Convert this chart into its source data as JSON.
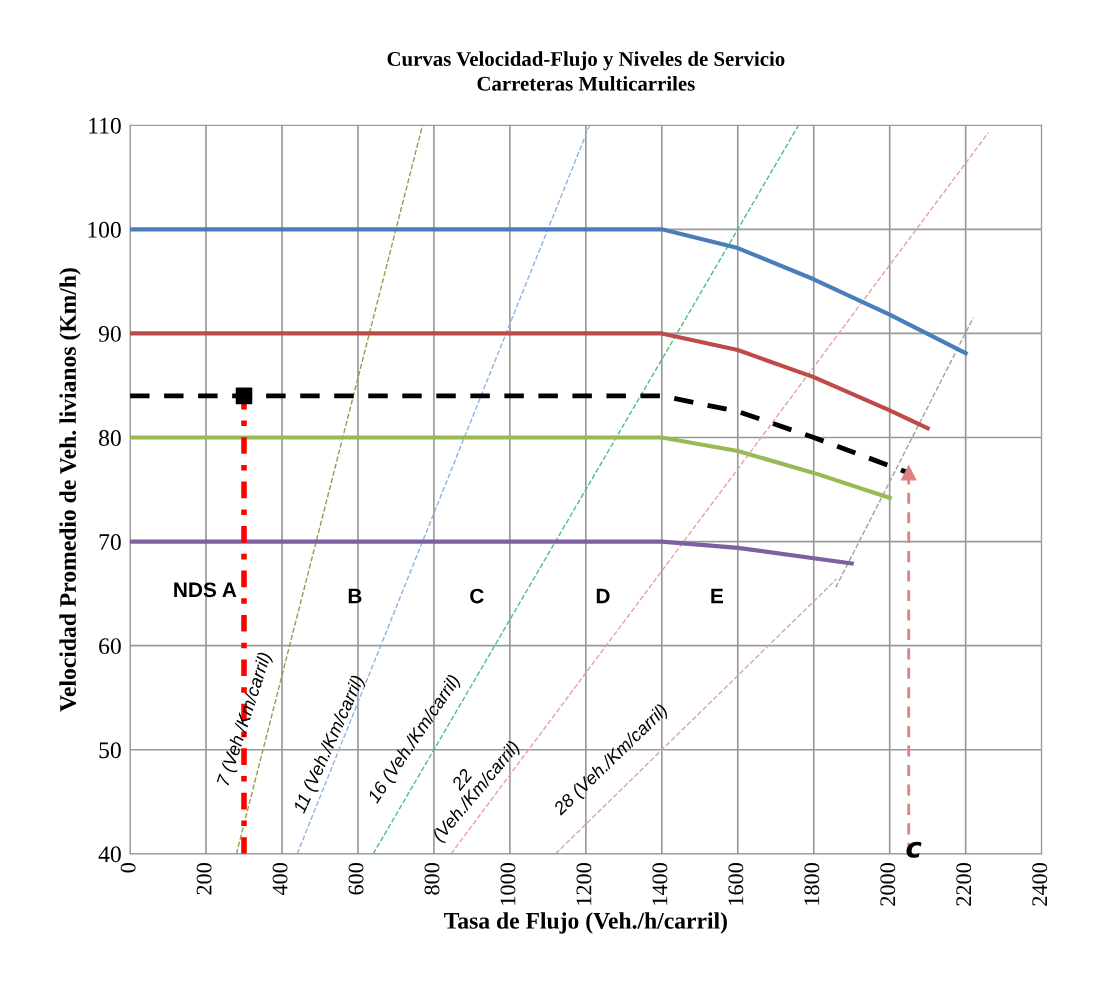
{
  "chart_data": {
    "type": "line",
    "title": "Curvas Velocidad-Flujo y Niveles de Servicio\nCarreteras Multicarriles",
    "xlabel": "Tasa de Flujo (Veh./h/carril)",
    "ylabel": "Velocidad Promedio de Veh. livianos (Km/h)",
    "xlim": [
      0,
      2400
    ],
    "xticks": [
      0,
      200,
      400,
      600,
      800,
      1000,
      1200,
      1400,
      1600,
      1800,
      2000,
      2200,
      2400
    ],
    "ylim": [
      40,
      110
    ],
    "yticks": [
      40,
      50,
      60,
      70,
      80,
      90,
      100,
      110
    ],
    "grid": true,
    "series": [
      {
        "color": "#4a7ebb",
        "x": [
          0,
          1400,
          1600,
          1800,
          2000,
          2200
        ],
        "values": [
          100,
          100,
          98.2,
          95.2,
          91.8,
          88.1
        ],
        "line_style": "solid"
      },
      {
        "color": "#be4b48",
        "x": [
          0,
          1400,
          1600,
          1800,
          2000,
          2100
        ],
        "values": [
          90,
          90,
          88.4,
          85.8,
          82.6,
          80.9
        ],
        "line_style": "solid"
      },
      {
        "color": "#98b954",
        "x": [
          0,
          1400,
          1600,
          1800,
          2000
        ],
        "values": [
          80,
          80,
          78.7,
          76.6,
          74.2
        ],
        "line_style": "solid"
      },
      {
        "color": "#7d60a0",
        "x": [
          0,
          1400,
          1600,
          1900
        ],
        "values": [
          70,
          70,
          69.4,
          67.9
        ],
        "line_style": "solid"
      },
      {
        "color": "#000000",
        "x": [
          0,
          1400,
          1600,
          1800,
          2050
        ],
        "values": [
          84,
          84,
          82.5,
          80.0,
          76.6
        ],
        "line_style": "dashed"
      },
      {
        "color": "#8f9f50",
        "x": [
          280,
          770
        ],
        "values": [
          40,
          110
        ],
        "line_style": "dashed"
      },
      {
        "color": "#8db4e2",
        "x": [
          440,
          1210
        ],
        "values": [
          40,
          110
        ],
        "line_style": "dashed"
      },
      {
        "color": "#4bbf84",
        "x": [
          640,
          1760
        ],
        "values": [
          40,
          110
        ],
        "line_style": "dashed"
      },
      {
        "color": "#e8a0a0",
        "x": [
          845,
          2260
        ],
        "values": [
          40,
          109.3
        ],
        "line_style": "dashed"
      },
      {
        "color": "#d9a3b0",
        "x": [
          1120,
          1860
        ],
        "values": [
          40,
          66.4
        ],
        "line_style": "dashed"
      },
      {
        "color": "#a0a0a0",
        "x": [
          1858,
          2220
        ],
        "values": [
          65.6,
          91.5
        ],
        "line_style": "dashed"
      },
      {
        "color": "#ff0000",
        "x": [
          300,
          300
        ],
        "values": [
          40,
          84
        ],
        "line_style": "dashed"
      },
      {
        "color": "#e08080",
        "x": [
          2050,
          2050
        ],
        "values": [
          40,
          76.6
        ],
        "line_style": "dashed",
        "marker": "triangle"
      },
      {
        "type": "scatter",
        "color": "#000000",
        "x": [
          300
        ],
        "values": [
          84
        ],
        "marker": "square"
      }
    ],
    "annotations": [
      "NDS A",
      "B",
      "C",
      "D",
      "E",
      "7 (Veh./Km/carril)",
      "11 (Veh./Km/carril)",
      "16 (Veh./Km/carril)",
      "22\n(Veh./Km/carril)",
      "28 (Veh./Km/carril)",
      "c"
    ]
  }
}
